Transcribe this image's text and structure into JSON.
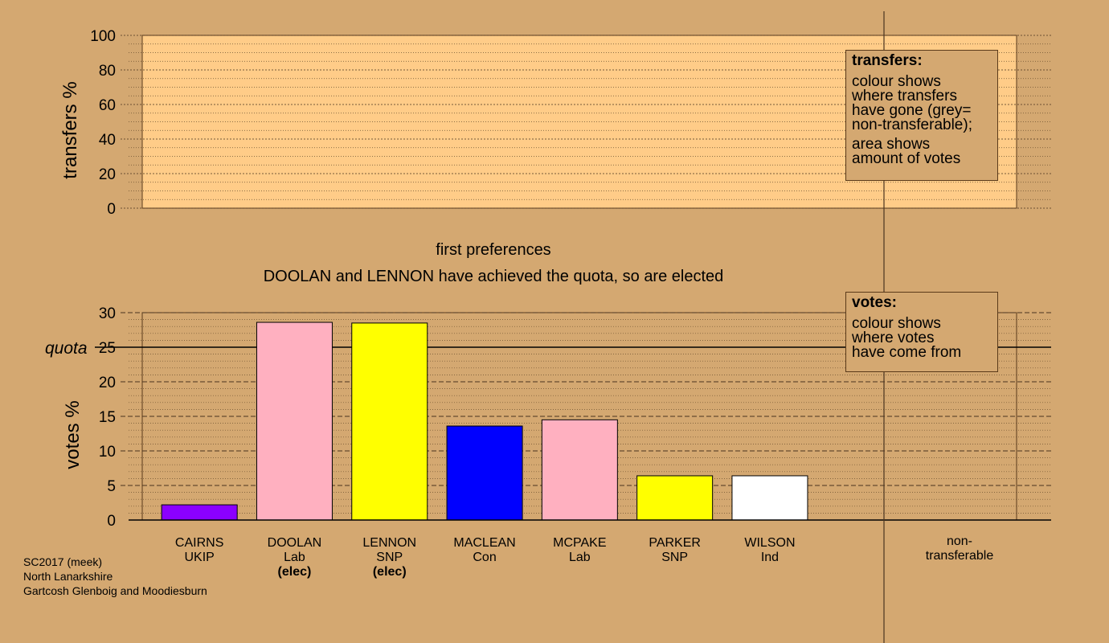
{
  "chart_data": [
    {
      "type": "bar",
      "title": "",
      "ylabel": "transfers %",
      "ylim": [
        0,
        100
      ],
      "yticks": [
        "0",
        "20",
        "40",
        "60",
        "80",
        "100"
      ],
      "grid": "dotted",
      "categories": [],
      "values": []
    },
    {
      "type": "bar",
      "title": "first preferences",
      "subtitle": "DOOLAN and LENNON have achieved the quota, so are elected",
      "ylabel": "votes %",
      "ylim": [
        0,
        30
      ],
      "yticks": [
        "0",
        "5",
        "10",
        "15",
        "20",
        "25",
        "30"
      ],
      "quota_label": "quota",
      "quota_value": 25,
      "grid": "dashed",
      "categories": [
        "CAIRNS",
        "DOOLAN",
        "LENNON",
        "MACLEAN",
        "MCPAKE",
        "PARKER",
        "WILSON"
      ],
      "parties": [
        "UKIP",
        "Lab",
        "SNP",
        "Con",
        "Lab",
        "SNP",
        "Ind"
      ],
      "elected": [
        "",
        "(elec)",
        "(elec)",
        "",
        "",
        "",
        ""
      ],
      "values": [
        2.2,
        28.6,
        28.5,
        13.6,
        14.5,
        6.4,
        6.4
      ],
      "colors": [
        "#8b00ff",
        "#ffb0c0",
        "#ffff00",
        "#0000ff",
        "#ffb0c0",
        "#ffff00",
        "#ffffff"
      ],
      "extra_category": "non-\ntransferable"
    }
  ],
  "legend_transfers": {
    "title": "transfers:",
    "p1": [
      "colour shows",
      "where transfers",
      "have gone (grey=",
      "non-transferable);"
    ],
    "p2": [
      "area shows",
      "amount of votes"
    ]
  },
  "legend_votes": {
    "title": "votes:",
    "p1": [
      "colour shows",
      "where votes",
      "have come from"
    ]
  },
  "source": [
    "SC2017 (meek)",
    "North Lanarkshire",
    "Gartcosh Glenboig and Moodiesburn"
  ],
  "colors": {
    "background": "#d4a871",
    "plot_area": "#ffcc88"
  }
}
